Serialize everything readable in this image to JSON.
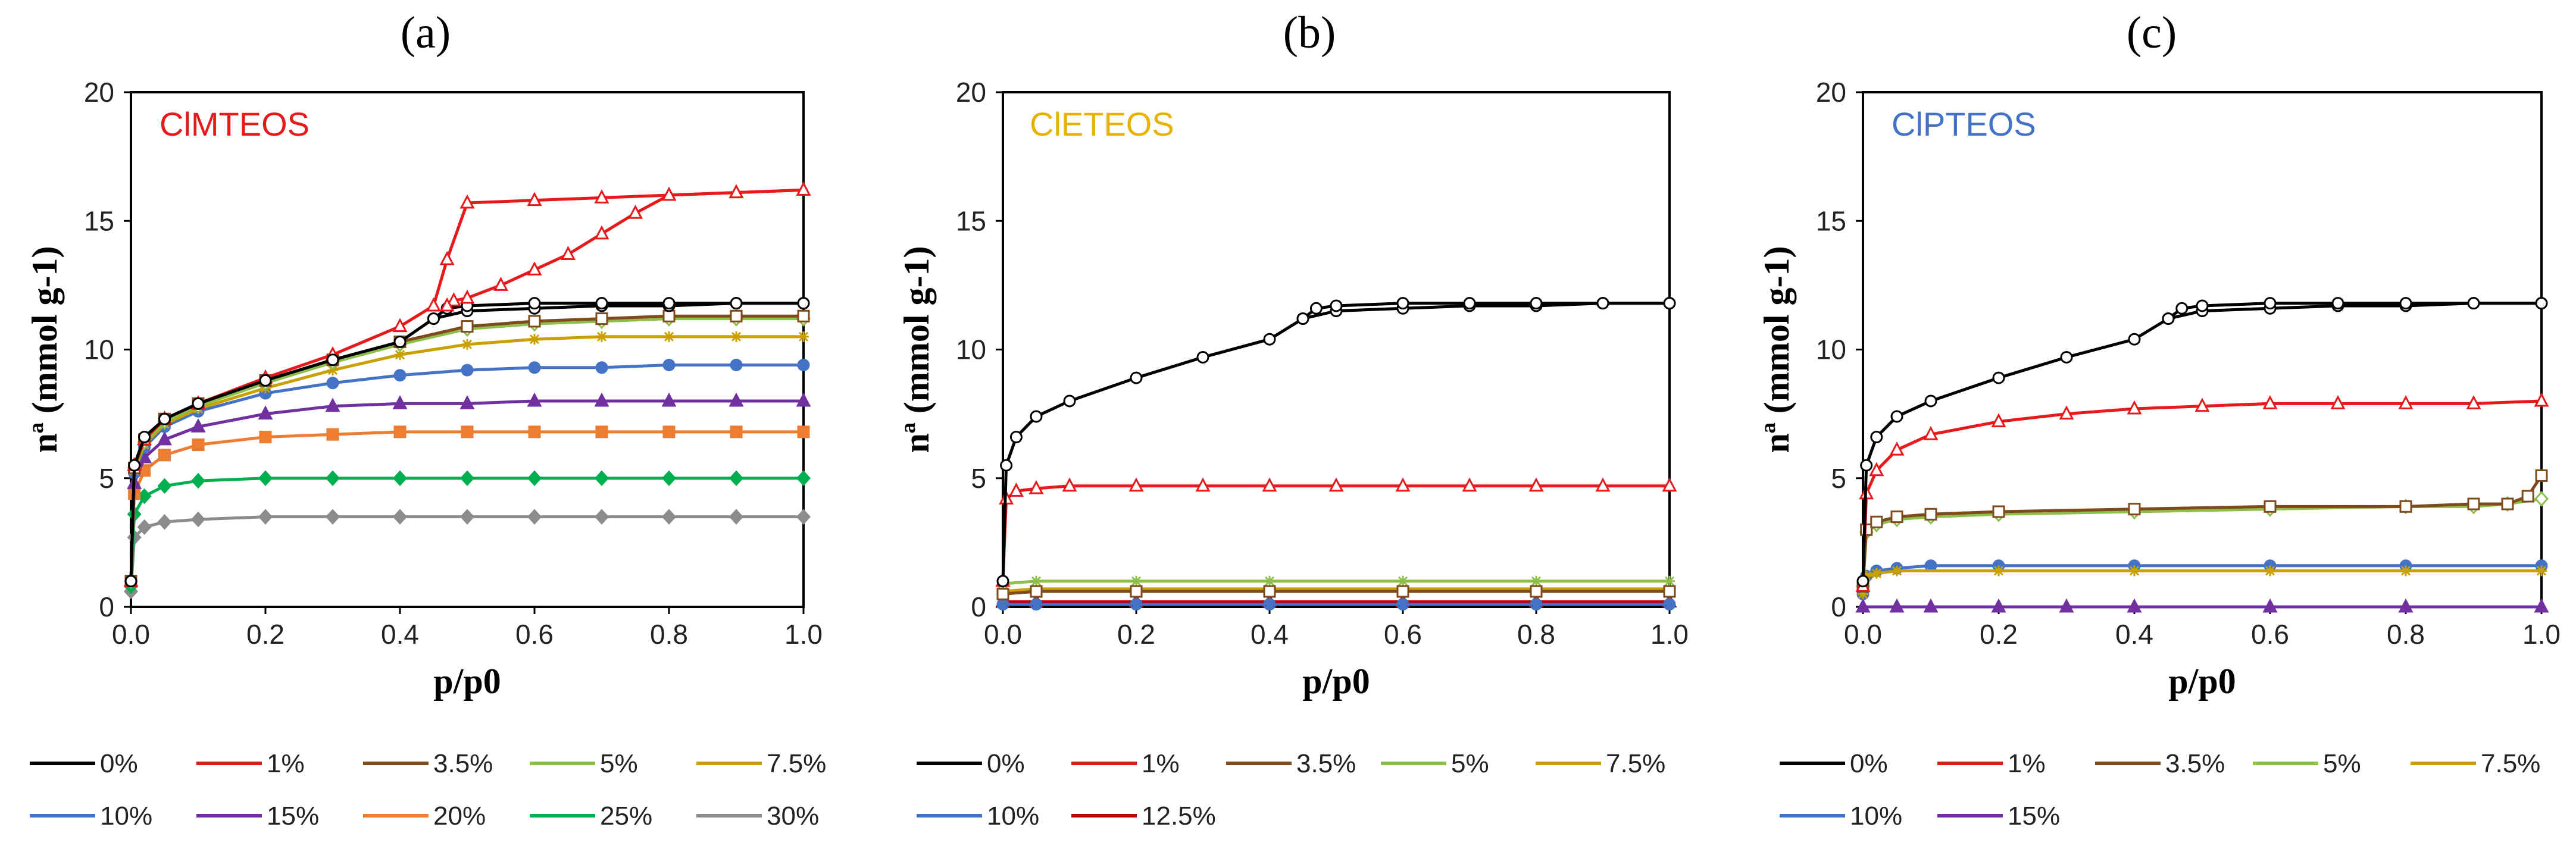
{
  "figure": {
    "panel_labels": [
      "(a)",
      "(b)",
      "(c)"
    ]
  },
  "chart_data": [
    {
      "type": "line",
      "panel": "(a)",
      "title": "ClMTEOS",
      "title_color": "#e8191b",
      "xlabel": "p/p0",
      "ylabel": "nª (mmol g-1)",
      "xlim": [
        0,
        1
      ],
      "ylim": [
        0,
        20
      ],
      "xticks": [
        "0.0",
        "0.2",
        "0.4",
        "0.6",
        "0.8",
        "1.0"
      ],
      "yticks": [
        "0",
        "5",
        "10",
        "15",
        "20"
      ],
      "series": [
        {
          "name": "0%",
          "color": "#000000",
          "marker": "circle-open",
          "x": [
            0,
            0.005,
            0.02,
            0.05,
            0.1,
            0.2,
            0.3,
            0.4,
            0.45,
            0.5,
            0.6,
            0.7,
            0.8,
            0.9,
            1.0
          ],
          "y": [
            1.0,
            5.5,
            6.6,
            7.3,
            7.9,
            8.8,
            9.6,
            10.3,
            11.2,
            11.5,
            11.6,
            11.7,
            11.7,
            11.8,
            11.8
          ]
        },
        {
          "name": "1%",
          "color": "#e8191b",
          "marker": "triangle-open",
          "x": [
            0,
            0.005,
            0.02,
            0.05,
            0.1,
            0.2,
            0.3,
            0.4,
            0.45,
            0.47,
            0.5,
            0.6,
            0.7,
            0.8,
            0.9,
            1.0
          ],
          "y": [
            1.0,
            5.5,
            6.5,
            7.3,
            7.9,
            8.9,
            9.8,
            10.9,
            11.7,
            13.5,
            15.7,
            15.8,
            15.9,
            16.0,
            16.1,
            16.2
          ]
        },
        {
          "name": "3.5%",
          "color": "#7f4a1c",
          "marker": "square-open",
          "x": [
            0,
            0.005,
            0.02,
            0.05,
            0.1,
            0.2,
            0.3,
            0.4,
            0.5,
            0.6,
            0.7,
            0.8,
            0.9,
            1.0
          ],
          "y": [
            1.0,
            5.4,
            6.5,
            7.3,
            7.9,
            8.8,
            9.6,
            10.3,
            10.9,
            11.1,
            11.2,
            11.3,
            11.3,
            11.3
          ]
        },
        {
          "name": "5%",
          "color": "#8cc04b",
          "marker": "diamond-open",
          "x": [
            0,
            0.005,
            0.02,
            0.05,
            0.1,
            0.2,
            0.3,
            0.4,
            0.5,
            0.6,
            0.7,
            0.8,
            0.9,
            1.0
          ],
          "y": [
            1.0,
            5.4,
            6.4,
            7.2,
            7.8,
            8.7,
            9.5,
            10.2,
            10.8,
            11.0,
            11.1,
            11.2,
            11.2,
            11.2
          ]
        },
        {
          "name": "7.5%",
          "color": "#c9a000",
          "marker": "star",
          "x": [
            0,
            0.005,
            0.02,
            0.05,
            0.1,
            0.2,
            0.3,
            0.4,
            0.5,
            0.6,
            0.7,
            0.8,
            0.9,
            1.0
          ],
          "y": [
            1.0,
            5.3,
            6.3,
            7.1,
            7.7,
            8.5,
            9.2,
            9.8,
            10.2,
            10.4,
            10.5,
            10.5,
            10.5,
            10.5
          ]
        },
        {
          "name": "10%",
          "color": "#4472c4",
          "marker": "circle-filled",
          "x": [
            0,
            0.005,
            0.02,
            0.05,
            0.1,
            0.2,
            0.3,
            0.4,
            0.5,
            0.6,
            0.7,
            0.8,
            0.9,
            1.0
          ],
          "y": [
            1.0,
            5.2,
            6.2,
            7.0,
            7.6,
            8.3,
            8.7,
            9.0,
            9.2,
            9.3,
            9.3,
            9.4,
            9.4,
            9.4
          ]
        },
        {
          "name": "15%",
          "color": "#7030a0",
          "marker": "triangle-filled",
          "x": [
            0,
            0.005,
            0.02,
            0.05,
            0.1,
            0.2,
            0.3,
            0.4,
            0.5,
            0.6,
            0.7,
            0.8,
            0.9,
            1.0
          ],
          "y": [
            1.0,
            4.8,
            5.8,
            6.5,
            7.0,
            7.5,
            7.8,
            7.9,
            7.9,
            8.0,
            8.0,
            8.0,
            8.0,
            8.0
          ]
        },
        {
          "name": "20%",
          "color": "#ed7d31",
          "marker": "square-filled",
          "x": [
            0,
            0.005,
            0.02,
            0.05,
            0.1,
            0.2,
            0.3,
            0.4,
            0.5,
            0.6,
            0.7,
            0.8,
            0.9,
            1.0
          ],
          "y": [
            1.0,
            4.4,
            5.3,
            5.9,
            6.3,
            6.6,
            6.7,
            6.8,
            6.8,
            6.8,
            6.8,
            6.8,
            6.8,
            6.8
          ]
        },
        {
          "name": "25%",
          "color": "#00b050",
          "marker": "diamond-filled",
          "x": [
            0,
            0.005,
            0.02,
            0.05,
            0.1,
            0.2,
            0.3,
            0.4,
            0.5,
            0.6,
            0.7,
            0.8,
            0.9,
            1.0
          ],
          "y": [
            0.8,
            3.6,
            4.3,
            4.7,
            4.9,
            5.0,
            5.0,
            5.0,
            5.0,
            5.0,
            5.0,
            5.0,
            5.0,
            5.0
          ]
        },
        {
          "name": "30%",
          "color": "#8c8c8c",
          "marker": "diamond-filled",
          "x": [
            0,
            0.005,
            0.02,
            0.05,
            0.1,
            0.2,
            0.3,
            0.4,
            0.5,
            0.6,
            0.7,
            0.8,
            0.9,
            1.0
          ],
          "y": [
            0.6,
            2.7,
            3.1,
            3.3,
            3.4,
            3.5,
            3.5,
            3.5,
            3.5,
            3.5,
            3.5,
            3.5,
            3.5,
            3.5
          ]
        }
      ],
      "desorption_branches": [
        {
          "name": "0% desorption",
          "color": "#000000",
          "x": [
            1.0,
            0.9,
            0.8,
            0.7,
            0.6,
            0.5,
            0.47,
            0.45
          ],
          "y": [
            11.8,
            11.8,
            11.8,
            11.8,
            11.8,
            11.7,
            11.6,
            11.2
          ]
        },
        {
          "name": "1% desorption",
          "color": "#e8191b",
          "x": [
            1.0,
            0.9,
            0.8,
            0.75,
            0.7,
            0.65,
            0.6,
            0.55,
            0.5,
            0.48,
            0.47
          ],
          "y": [
            16.2,
            16.1,
            16.0,
            15.3,
            14.5,
            13.7,
            13.1,
            12.5,
            12.0,
            11.9,
            11.7
          ]
        }
      ],
      "legend": [
        "0%",
        "1%",
        "3.5%",
        "5%",
        "7.5%",
        "10%",
        "15%",
        "20%",
        "25%",
        "30%"
      ]
    },
    {
      "type": "line",
      "panel": "(b)",
      "title": "ClETEOS",
      "title_color": "#e6b400",
      "xlabel": "p/p0",
      "ylabel": "nª (mmol g-1)",
      "xlim": [
        0,
        1
      ],
      "ylim": [
        0,
        20
      ],
      "xticks": [
        "0.0",
        "0.2",
        "0.4",
        "0.6",
        "0.8",
        "1.0"
      ],
      "yticks": [
        "0",
        "5",
        "10",
        "15",
        "20"
      ],
      "series": [
        {
          "name": "0%",
          "color": "#000000",
          "marker": "circle-open",
          "x": [
            0,
            0.005,
            0.02,
            0.05,
            0.1,
            0.2,
            0.3,
            0.4,
            0.45,
            0.5,
            0.6,
            0.7,
            0.8,
            0.9,
            1.0
          ],
          "y": [
            1.0,
            5.5,
            6.6,
            7.4,
            8.0,
            8.9,
            9.7,
            10.4,
            11.2,
            11.5,
            11.6,
            11.7,
            11.7,
            11.8,
            11.8
          ]
        },
        {
          "name": "1%",
          "color": "#e8191b",
          "marker": "triangle-open",
          "x": [
            0,
            0.005,
            0.02,
            0.05,
            0.1,
            0.2,
            0.3,
            0.4,
            0.5,
            0.6,
            0.7,
            0.8,
            0.9,
            1.0
          ],
          "y": [
            1.0,
            4.2,
            4.5,
            4.6,
            4.7,
            4.7,
            4.7,
            4.7,
            4.7,
            4.7,
            4.7,
            4.7,
            4.7,
            4.7
          ]
        },
        {
          "name": "3.5%",
          "color": "#7f4a1c",
          "marker": "square-open",
          "x": [
            0,
            0.05,
            0.2,
            0.4,
            0.6,
            0.8,
            1.0
          ],
          "y": [
            0.5,
            0.6,
            0.6,
            0.6,
            0.6,
            0.6,
            0.6
          ]
        },
        {
          "name": "5%",
          "color": "#8cc04b",
          "marker": "star",
          "x": [
            0,
            0.05,
            0.2,
            0.4,
            0.6,
            0.8,
            1.0
          ],
          "y": [
            0.9,
            1.0,
            1.0,
            1.0,
            1.0,
            1.0,
            1.0
          ]
        },
        {
          "name": "7.5%",
          "color": "#c9a000",
          "marker": "star",
          "x": [
            0,
            0.05,
            0.2,
            0.4,
            0.6,
            0.8,
            1.0
          ],
          "y": [
            0.6,
            0.7,
            0.7,
            0.7,
            0.7,
            0.7,
            0.7
          ]
        },
        {
          "name": "10%",
          "color": "#4472c4",
          "marker": "circle-filled",
          "x": [
            0,
            0.05,
            0.2,
            0.4,
            0.6,
            0.8,
            1.0
          ],
          "y": [
            0.1,
            0.1,
            0.1,
            0.1,
            0.1,
            0.1,
            0.1
          ]
        },
        {
          "name": "12.5%",
          "color": "#c00000",
          "marker": "triangle-filled",
          "x": [
            0,
            0.05,
            0.2,
            0.4,
            0.6,
            0.8,
            1.0
          ],
          "y": [
            0.2,
            0.2,
            0.2,
            0.2,
            0.2,
            0.2,
            0.2
          ]
        }
      ],
      "desorption_branches": [
        {
          "name": "0% desorption",
          "color": "#000000",
          "x": [
            1.0,
            0.9,
            0.8,
            0.7,
            0.6,
            0.5,
            0.47,
            0.45
          ],
          "y": [
            11.8,
            11.8,
            11.8,
            11.8,
            11.8,
            11.7,
            11.6,
            11.2
          ]
        }
      ],
      "legend": [
        "0%",
        "1%",
        "3.5%",
        "5%",
        "7.5%",
        "10%",
        "12.5%"
      ]
    },
    {
      "type": "line",
      "panel": "(c)",
      "title": "ClPTEOS",
      "title_color": "#4472c4",
      "xlabel": "p/p0",
      "ylabel": "nª (mmol g-1)",
      "xlim": [
        0,
        1
      ],
      "ylim": [
        0,
        20
      ],
      "xticks": [
        "0.0",
        "0.2",
        "0.4",
        "0.6",
        "0.8",
        "1.0"
      ],
      "yticks": [
        "0",
        "5",
        "10",
        "15",
        "20"
      ],
      "series": [
        {
          "name": "0%",
          "color": "#000000",
          "marker": "circle-open",
          "x": [
            0,
            0.005,
            0.02,
            0.05,
            0.1,
            0.2,
            0.3,
            0.4,
            0.45,
            0.5,
            0.6,
            0.7,
            0.8,
            0.9,
            1.0
          ],
          "y": [
            1.0,
            5.5,
            6.6,
            7.4,
            8.0,
            8.9,
            9.7,
            10.4,
            11.2,
            11.5,
            11.6,
            11.7,
            11.7,
            11.8,
            11.8
          ]
        },
        {
          "name": "1%",
          "color": "#e8191b",
          "marker": "triangle-open",
          "x": [
            0,
            0.005,
            0.02,
            0.05,
            0.1,
            0.2,
            0.3,
            0.4,
            0.5,
            0.6,
            0.7,
            0.8,
            0.9,
            1.0
          ],
          "y": [
            0.8,
            4.4,
            5.3,
            6.1,
            6.7,
            7.2,
            7.5,
            7.7,
            7.8,
            7.9,
            7.9,
            7.9,
            7.9,
            8.0
          ]
        },
        {
          "name": "3.5%",
          "color": "#7f4a1c",
          "marker": "square-open",
          "x": [
            0,
            0.005,
            0.02,
            0.05,
            0.1,
            0.2,
            0.4,
            0.6,
            0.8,
            0.9,
            0.95,
            0.98,
            1.0
          ],
          "y": [
            0.8,
            3.0,
            3.3,
            3.5,
            3.6,
            3.7,
            3.8,
            3.9,
            3.9,
            4.0,
            4.0,
            4.3,
            5.1
          ]
        },
        {
          "name": "5%",
          "color": "#8cc04b",
          "marker": "diamond-open",
          "x": [
            0,
            0.005,
            0.02,
            0.05,
            0.1,
            0.2,
            0.4,
            0.6,
            0.8,
            0.9,
            0.95,
            1.0
          ],
          "y": [
            0.8,
            2.9,
            3.2,
            3.4,
            3.5,
            3.6,
            3.7,
            3.8,
            3.9,
            3.9,
            4.0,
            4.2
          ]
        },
        {
          "name": "7.5%",
          "color": "#c9a000",
          "marker": "star",
          "x": [
            0,
            0.005,
            0.02,
            0.05,
            0.2,
            0.4,
            0.6,
            0.8,
            1.0
          ],
          "y": [
            0.5,
            1.2,
            1.3,
            1.4,
            1.4,
            1.4,
            1.4,
            1.4,
            1.4
          ]
        },
        {
          "name": "10%",
          "color": "#4472c4",
          "marker": "circle-filled",
          "x": [
            0,
            0.005,
            0.02,
            0.05,
            0.1,
            0.2,
            0.4,
            0.6,
            0.8,
            1.0
          ],
          "y": [
            0.5,
            1.2,
            1.4,
            1.5,
            1.6,
            1.6,
            1.6,
            1.6,
            1.6,
            1.6
          ]
        },
        {
          "name": "15%",
          "color": "#7030a0",
          "marker": "triangle-filled",
          "x": [
            0,
            0.05,
            0.1,
            0.2,
            0.3,
            0.4,
            0.6,
            0.8,
            1.0
          ],
          "y": [
            0.0,
            0.0,
            0.0,
            0.0,
            0.0,
            0.0,
            0.0,
            0.0,
            0.0
          ]
        }
      ],
      "desorption_branches": [
        {
          "name": "0% desorption",
          "color": "#000000",
          "x": [
            1.0,
            0.9,
            0.8,
            0.7,
            0.6,
            0.5,
            0.47,
            0.45
          ],
          "y": [
            11.8,
            11.8,
            11.8,
            11.8,
            11.8,
            11.7,
            11.6,
            11.2
          ]
        }
      ],
      "legend": [
        "0%",
        "1%",
        "3.5%",
        "5%",
        "7.5%",
        "10%",
        "15%"
      ]
    }
  ]
}
